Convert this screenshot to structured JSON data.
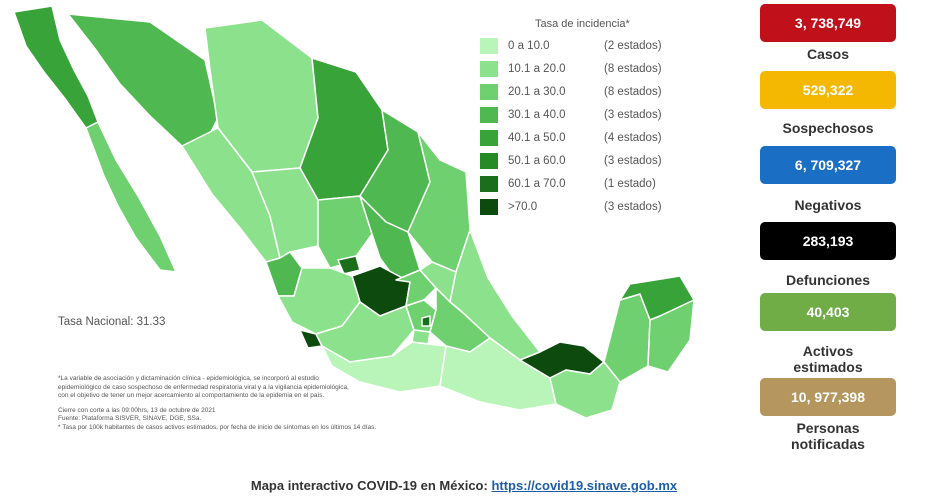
{
  "map": {
    "legend": {
      "title": "Tasa de incidencia*",
      "items": [
        {
          "range": "0  a  10.0",
          "count": "(2 estados)",
          "color": "#b9f5b9"
        },
        {
          "range": "10.1 a  20.0",
          "count": "(8 estados)",
          "color": "#8ce28c"
        },
        {
          "range": "20.1 a  30.0",
          "count": "(8 estados)",
          "color": "#6ed06e"
        },
        {
          "range": "30.1 a  40.0",
          "count": "(3 estados)",
          "color": "#50b850"
        },
        {
          "range": "40.1 a  50.0",
          "count": "(4 estados)",
          "color": "#38a338"
        },
        {
          "range": "50.1 a  60.0",
          "count": "(3 estados)",
          "color": "#268a26"
        },
        {
          "range": "60.1 a  70.0",
          "count": "(1 estado)",
          "color": "#1b6e1b"
        },
        {
          "range": ">70.0",
          "count": "(3 estados)",
          "color": "#0d4a0d"
        }
      ]
    },
    "tasa_nacional": "Tasa Nacional: 31.33",
    "footnotes": [
      "*La variable de asociación y dictaminación clínica - epidemiológica, se incorporó al estudio",
      "epidemiológico de caso sospechoso de enfermedad respiratoria viral y a la vigilancia epidemiológica,",
      "con el objetivo de tener un mejor acercamiento al comportamiento de la epidemia en el país."
    ],
    "footnotes2": [
      "Cierre con corte a las 09:00hrs, 13 de octubre de 2021",
      "Fuente: Plataforma SISVER, SINAVE, DGE, SSa.",
      "* Tasa por 100k habitantes de casos activos estimados, por fecha de inicio de síntomas en los últimos 14 días."
    ]
  },
  "stats": [
    {
      "value": "3, 738,749",
      "label": "Casos",
      "color": "#c0111b"
    },
    {
      "value": "529,322",
      "label": "Sospechosos",
      "color": "#f5b800"
    },
    {
      "value": "6, 709,327",
      "label": "Negativos",
      "color": "#1a6fc4"
    },
    {
      "value": "283,193",
      "label": "Defunciones",
      "color": "#000000"
    },
    {
      "value": "40,403",
      "label": "Activos estimados",
      "color": "#71ad47"
    },
    {
      "value": "10, 977,398",
      "label": "Personas notificadas",
      "color": "#b5965e"
    }
  ],
  "caption": {
    "text": "Mapa interactivo COVID-19 en México: ",
    "link": "https://covid19.sinave.gob.mx"
  }
}
